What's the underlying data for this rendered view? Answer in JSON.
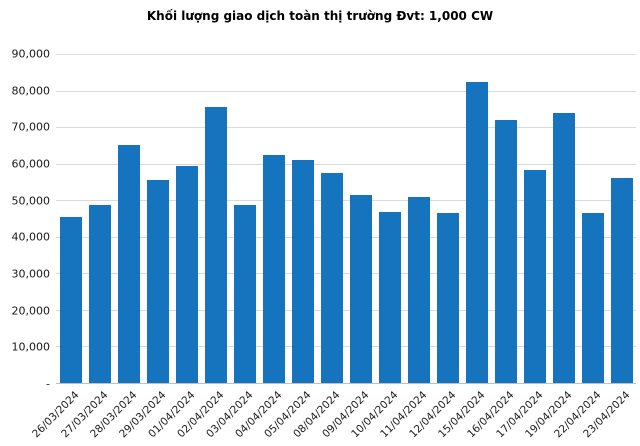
{
  "page": {
    "background": "#ffffff"
  },
  "chart_data": {
    "type": "bar",
    "title": "Khối lượng giao dịch toàn thị trường Đvt: 1,000 CW",
    "categories": [
      "26/03/2024",
      "27/03/2024",
      "28/03/2024",
      "29/03/2024",
      "01/04/2024",
      "02/04/2024",
      "03/04/2024",
      "04/04/2024",
      "05/04/2024",
      "08/04/2024",
      "09/04/2024",
      "10/04/2024",
      "11/04/2024",
      "12/04/2024",
      "15/04/2024",
      "16/04/2024",
      "17/04/2024",
      "19/04/2024",
      "22/04/2024",
      "23/04/2024"
    ],
    "values": [
      45500,
      48700,
      65000,
      55500,
      59500,
      75500,
      48700,
      62300,
      61000,
      57500,
      51500,
      46800,
      51000,
      46500,
      82300,
      72000,
      58200,
      74000,
      46500,
      56200
    ],
    "xlabel": "",
    "ylabel": "",
    "ylim": [
      0,
      90000
    ],
    "y_ticks": [
      {
        "label": "90,000",
        "value": 90000
      },
      {
        "label": "80,000",
        "value": 80000
      },
      {
        "label": "70,000",
        "value": 70000
      },
      {
        "label": "60,000",
        "value": 60000
      },
      {
        "label": "50,000",
        "value": 50000
      },
      {
        "label": "40,000",
        "value": 40000
      },
      {
        "label": "30,000",
        "value": 30000
      },
      {
        "label": "20,000",
        "value": 20000
      },
      {
        "label": "10,000",
        "value": 10000
      },
      {
        "label": "-",
        "value": 0
      }
    ],
    "grid": true,
    "legend": false,
    "bar_color": "#1574bd",
    "gridline_color": "#d9d9d9",
    "axis_line_color": "#bfbfbf",
    "text_color": "#1a1a1a"
  }
}
